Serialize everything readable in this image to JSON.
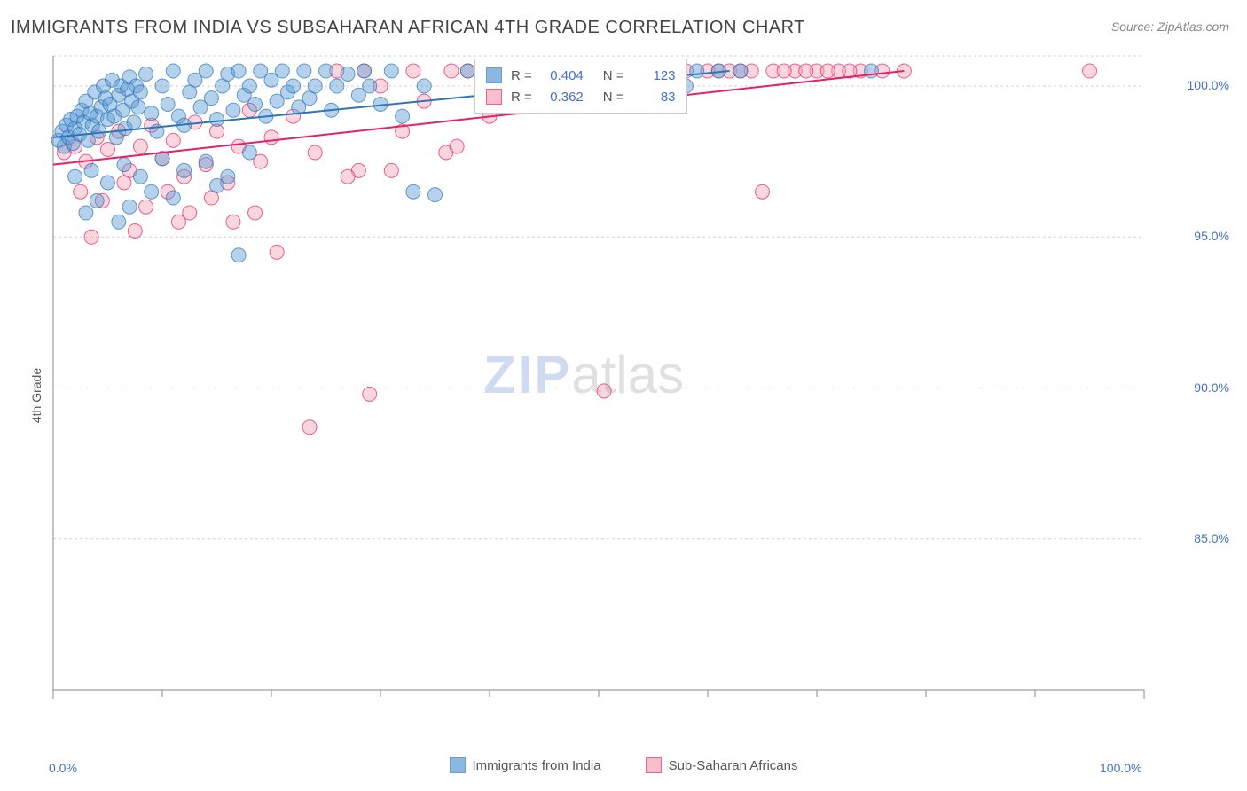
{
  "title": "IMMIGRANTS FROM INDIA VS SUBSAHARAN AFRICAN 4TH GRADE CORRELATION CHART",
  "source": "Source: ZipAtlas.com",
  "ylabel": "4th Grade",
  "watermark_zip": "ZIP",
  "watermark_atlas": "atlas",
  "chart": {
    "type": "scatter",
    "xlim": [
      0,
      100
    ],
    "ylim": [
      80,
      101
    ],
    "ytick_values": [
      85.0,
      90.0,
      95.0,
      100.0
    ],
    "ytick_labels": [
      "85.0%",
      "90.0%",
      "95.0%",
      "100.0%"
    ],
    "xtick_values": [
      0,
      100
    ],
    "xtick_labels": [
      "0.0%",
      "100.0%"
    ],
    "xtick_minor": [
      10,
      20,
      30,
      40,
      50,
      60,
      70,
      80,
      90
    ],
    "background_color": "#ffffff",
    "grid_color": "#d0d0d0",
    "grid_dash": "3,3",
    "axis_color": "#888888",
    "marker_radius": 8,
    "marker_opacity": 0.45,
    "line_width": 2,
    "series": [
      {
        "name": "Immigrants from India",
        "color_fill": "#5b9bd5",
        "color_stroke": "#2e75b6",
        "R": "0.404",
        "N": "123",
        "trend": {
          "x1": 0,
          "y1": 98.3,
          "x2": 62,
          "y2": 100.5
        },
        "points": [
          [
            0.5,
            98.2
          ],
          [
            0.8,
            98.5
          ],
          [
            1.0,
            98.0
          ],
          [
            1.2,
            98.7
          ],
          [
            1.4,
            98.3
          ],
          [
            1.6,
            98.9
          ],
          [
            1.8,
            98.1
          ],
          [
            2.0,
            98.6
          ],
          [
            2.2,
            99.0
          ],
          [
            2.4,
            98.4
          ],
          [
            2.6,
            99.2
          ],
          [
            2.8,
            98.8
          ],
          [
            3.0,
            99.5
          ],
          [
            3.2,
            98.2
          ],
          [
            3.4,
            99.1
          ],
          [
            3.6,
            98.7
          ],
          [
            3.8,
            99.8
          ],
          [
            4.0,
            99.0
          ],
          [
            4.2,
            98.5
          ],
          [
            4.4,
            99.3
          ],
          [
            4.6,
            100.0
          ],
          [
            4.8,
            99.6
          ],
          [
            5.0,
            98.9
          ],
          [
            5.2,
            99.4
          ],
          [
            5.4,
            100.2
          ],
          [
            5.6,
            99.0
          ],
          [
            5.8,
            98.3
          ],
          [
            6.0,
            99.7
          ],
          [
            6.2,
            100.0
          ],
          [
            6.4,
            99.2
          ],
          [
            6.6,
            98.6
          ],
          [
            6.8,
            99.9
          ],
          [
            7.0,
            100.3
          ],
          [
            7.2,
            99.5
          ],
          [
            7.4,
            98.8
          ],
          [
            7.6,
            100.0
          ],
          [
            7.8,
            99.3
          ],
          [
            8.0,
            99.8
          ],
          [
            8.5,
            100.4
          ],
          [
            9.0,
            99.1
          ],
          [
            9.5,
            98.5
          ],
          [
            10.0,
            100.0
          ],
          [
            10.5,
            99.4
          ],
          [
            11.0,
            100.5
          ],
          [
            11.5,
            99.0
          ],
          [
            12.0,
            98.7
          ],
          [
            12.5,
            99.8
          ],
          [
            13.0,
            100.2
          ],
          [
            13.5,
            99.3
          ],
          [
            14.0,
            100.5
          ],
          [
            14.5,
            99.6
          ],
          [
            15.0,
            98.9
          ],
          [
            15.5,
            100.0
          ],
          [
            16.0,
            100.4
          ],
          [
            16.5,
            99.2
          ],
          [
            17.0,
            100.5
          ],
          [
            17.5,
            99.7
          ],
          [
            18.0,
            100.0
          ],
          [
            18.5,
            99.4
          ],
          [
            19.0,
            100.5
          ],
          [
            19.5,
            99.0
          ],
          [
            20.0,
            100.2
          ],
          [
            20.5,
            99.5
          ],
          [
            21.0,
            100.5
          ],
          [
            21.5,
            99.8
          ],
          [
            22.0,
            100.0
          ],
          [
            22.5,
            99.3
          ],
          [
            23.0,
            100.5
          ],
          [
            23.5,
            99.6
          ],
          [
            24.0,
            100.0
          ],
          [
            25.0,
            100.5
          ],
          [
            25.5,
            99.2
          ],
          [
            26.0,
            100.0
          ],
          [
            27.0,
            100.4
          ],
          [
            28.0,
            99.7
          ],
          [
            28.5,
            100.5
          ],
          [
            29.0,
            100.0
          ],
          [
            30.0,
            99.4
          ],
          [
            31.0,
            100.5
          ],
          [
            32.0,
            99.0
          ],
          [
            33.0,
            96.5
          ],
          [
            34.0,
            100.0
          ],
          [
            35.0,
            96.4
          ],
          [
            2.0,
            97.0
          ],
          [
            3.5,
            97.2
          ],
          [
            5.0,
            96.8
          ],
          [
            6.5,
            97.4
          ],
          [
            8.0,
            97.0
          ],
          [
            10.0,
            97.6
          ],
          [
            12.0,
            97.2
          ],
          [
            14.0,
            97.5
          ],
          [
            16.0,
            97.0
          ],
          [
            18.0,
            97.8
          ],
          [
            4.0,
            96.2
          ],
          [
            7.0,
            96.0
          ],
          [
            9.0,
            96.5
          ],
          [
            11.0,
            96.3
          ],
          [
            15.0,
            96.7
          ],
          [
            3.0,
            95.8
          ],
          [
            6.0,
            95.5
          ],
          [
            17.0,
            94.4
          ],
          [
            38.0,
            100.5
          ],
          [
            40.0,
            100.0
          ],
          [
            42.0,
            100.5
          ],
          [
            44.0,
            99.6
          ],
          [
            46.0,
            100.0
          ],
          [
            48.0,
            100.5
          ],
          [
            50.0,
            100.5
          ],
          [
            52.0,
            100.0
          ],
          [
            54.0,
            100.5
          ],
          [
            56.0,
            100.5
          ],
          [
            58.0,
            100.0
          ],
          [
            43.0,
            100.5
          ],
          [
            45.0,
            100.5
          ],
          [
            47.0,
            100.5
          ],
          [
            53.0,
            100.5
          ],
          [
            57.0,
            100.5
          ],
          [
            51.0,
            100.5
          ],
          [
            55.0,
            100.5
          ],
          [
            59.0,
            100.5
          ],
          [
            61.0,
            100.5
          ],
          [
            63.0,
            100.5
          ],
          [
            75.0,
            100.5
          ]
        ]
      },
      {
        "name": "Sub-Saharan Africans",
        "color_fill": "#f4a6b7",
        "color_stroke": "#e91e63",
        "R": "0.362",
        "N": "83",
        "trend": {
          "x1": 0,
          "y1": 97.4,
          "x2": 78,
          "y2": 100.5
        },
        "points": [
          [
            1.0,
            97.8
          ],
          [
            2.0,
            98.0
          ],
          [
            3.0,
            97.5
          ],
          [
            4.0,
            98.3
          ],
          [
            5.0,
            97.9
          ],
          [
            6.0,
            98.5
          ],
          [
            7.0,
            97.2
          ],
          [
            8.0,
            98.0
          ],
          [
            9.0,
            98.7
          ],
          [
            10.0,
            97.6
          ],
          [
            11.0,
            98.2
          ],
          [
            12.0,
            97.0
          ],
          [
            13.0,
            98.8
          ],
          [
            14.0,
            97.4
          ],
          [
            15.0,
            98.5
          ],
          [
            16.0,
            96.8
          ],
          [
            17.0,
            98.0
          ],
          [
            18.0,
            99.2
          ],
          [
            19.0,
            97.5
          ],
          [
            20.0,
            98.3
          ],
          [
            22.0,
            99.0
          ],
          [
            24.0,
            97.8
          ],
          [
            26.0,
            100.5
          ],
          [
            28.0,
            97.2
          ],
          [
            30.0,
            100.0
          ],
          [
            32.0,
            98.5
          ],
          [
            34.0,
            99.5
          ],
          [
            36.0,
            97.8
          ],
          [
            38.0,
            100.5
          ],
          [
            40.0,
            99.0
          ],
          [
            2.5,
            96.5
          ],
          [
            4.5,
            96.2
          ],
          [
            6.5,
            96.8
          ],
          [
            8.5,
            96.0
          ],
          [
            10.5,
            96.5
          ],
          [
            12.5,
            95.8
          ],
          [
            14.5,
            96.3
          ],
          [
            16.5,
            95.5
          ],
          [
            3.5,
            95.0
          ],
          [
            7.5,
            95.2
          ],
          [
            11.5,
            95.5
          ],
          [
            18.5,
            95.8
          ],
          [
            20.5,
            94.5
          ],
          [
            27.0,
            97.0
          ],
          [
            31.0,
            97.2
          ],
          [
            42.0,
            99.5
          ],
          [
            45.0,
            100.5
          ],
          [
            48.0,
            100.5
          ],
          [
            50.0,
            100.5
          ],
          [
            53.0,
            100.5
          ],
          [
            56.0,
            100.5
          ],
          [
            60.0,
            100.5
          ],
          [
            62.0,
            100.5
          ],
          [
            64.0,
            100.5
          ],
          [
            66.0,
            100.5
          ],
          [
            68.0,
            100.5
          ],
          [
            70.0,
            100.5
          ],
          [
            72.0,
            100.5
          ],
          [
            74.0,
            100.5
          ],
          [
            37.0,
            98.0
          ],
          [
            65.0,
            96.5
          ],
          [
            29.0,
            89.8
          ],
          [
            50.5,
            89.9
          ],
          [
            23.5,
            88.7
          ],
          [
            95.0,
            100.5
          ],
          [
            28.5,
            100.5
          ],
          [
            33.0,
            100.5
          ],
          [
            36.5,
            100.5
          ],
          [
            41.0,
            100.5
          ],
          [
            44.0,
            100.5
          ],
          [
            47.0,
            100.5
          ],
          [
            51.0,
            100.5
          ],
          [
            54.0,
            100.5
          ],
          [
            58.0,
            100.5
          ],
          [
            61.0,
            100.5
          ],
          [
            63.0,
            100.5
          ],
          [
            67.0,
            100.5
          ],
          [
            69.0,
            100.5
          ],
          [
            71.0,
            100.5
          ],
          [
            73.0,
            100.5
          ],
          [
            76.0,
            100.5
          ],
          [
            78.0,
            100.5
          ],
          [
            43.0,
            100.5
          ]
        ]
      }
    ]
  },
  "inner_legend": {
    "R_label": "R =",
    "N_label": "N ="
  },
  "bottom_legend_labels": [
    "Immigrants from India",
    "Sub-Saharan Africans"
  ]
}
